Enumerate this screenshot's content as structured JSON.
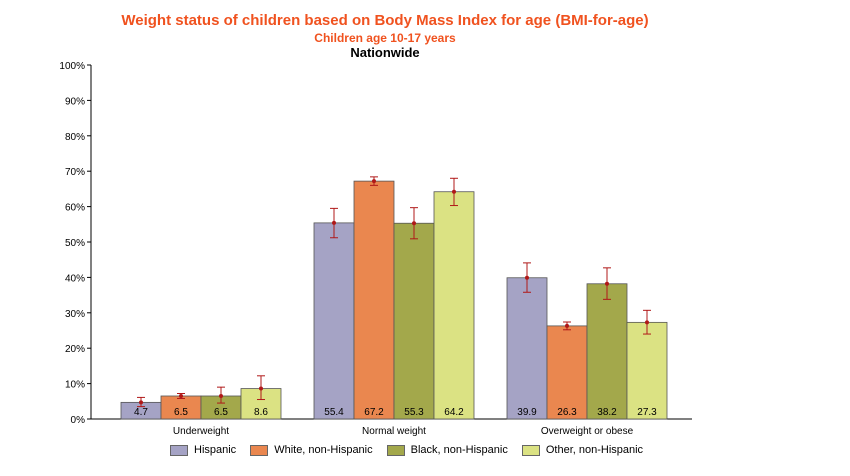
{
  "chart_data": {
    "type": "bar",
    "title": "Weight status of children based on Body Mass Index for age (BMI-for-age)",
    "subtitle": "Children age 10-17 years",
    "subtitle2": "Nationwide",
    "categories": [
      "Underweight",
      "Normal weight",
      "Overweight or obese"
    ],
    "ylim": [
      0,
      100
    ],
    "yticks": [
      0,
      10,
      20,
      30,
      40,
      50,
      60,
      70,
      80,
      90,
      100
    ],
    "ytick_labels": [
      "0%",
      "10%",
      "20%",
      "30%",
      "40%",
      "50%",
      "60%",
      "70%",
      "80%",
      "90%",
      "100%"
    ],
    "series": [
      {
        "name": "Hispanic",
        "color": "#a5a3c5",
        "values": [
          4.7,
          55.4,
          39.9
        ],
        "labels": [
          "4.7",
          "55.4",
          "39.9"
        ],
        "err_low": [
          3.5,
          51.2,
          35.8
        ],
        "err_high": [
          6.1,
          59.5,
          44.1
        ]
      },
      {
        "name": "White, non-Hispanic",
        "color": "#ea874f",
        "values": [
          6.5,
          67.2,
          26.3
        ],
        "labels": [
          "6.5",
          "67.2",
          "26.3"
        ],
        "err_low": [
          5.8,
          66.0,
          25.2
        ],
        "err_high": [
          7.2,
          68.4,
          27.4
        ]
      },
      {
        "name": "Black, non-Hispanic",
        "color": "#a3a84b",
        "values": [
          6.5,
          55.3,
          38.2
        ],
        "labels": [
          "6.5",
          "55.3",
          "38.2"
        ],
        "err_low": [
          4.5,
          50.9,
          33.8
        ],
        "err_high": [
          9.0,
          59.7,
          42.7
        ]
      },
      {
        "name": "Other, non-Hispanic",
        "color": "#dbe283",
        "values": [
          8.6,
          64.2,
          27.3
        ],
        "labels": [
          "8.6",
          "64.2",
          "27.3"
        ],
        "err_low": [
          5.5,
          60.3,
          24.0
        ],
        "err_high": [
          12.2,
          68.0,
          30.7
        ]
      }
    ],
    "error_bar_color": "#b01818",
    "grid": false,
    "legend_position": "bottom"
  }
}
